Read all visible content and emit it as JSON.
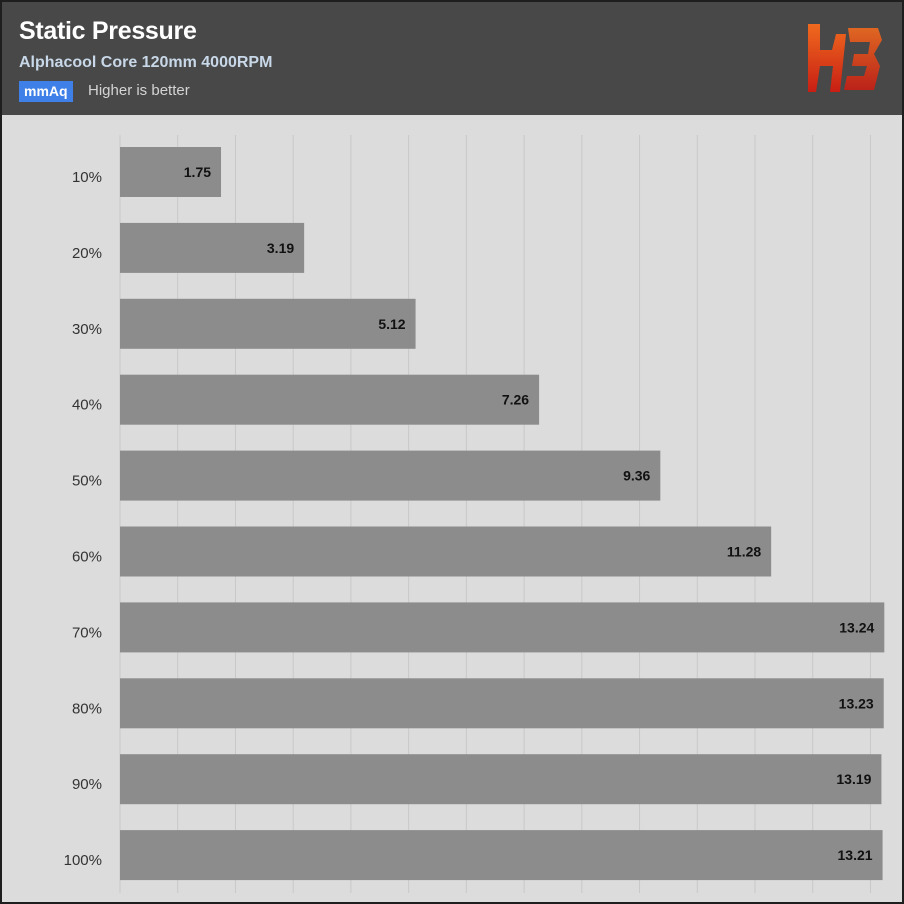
{
  "header": {
    "title": "Static Pressure",
    "subtitle": "Alphacool Core 120mm 4000RPM",
    "unit": "mmAq",
    "note": "Higher is better"
  },
  "logo": {
    "icon": "hb-logo-icon",
    "colors": [
      "#f06a1e",
      "#c81e14"
    ]
  },
  "chart_data": {
    "type": "bar",
    "orientation": "horizontal",
    "title": "Static Pressure",
    "subtitle": "Alphacool Core 120mm 4000RPM",
    "unit": "mmAq",
    "categories": [
      "10%",
      "20%",
      "30%",
      "40%",
      "50%",
      "60%",
      "70%",
      "80%",
      "90%",
      "100%"
    ],
    "values": [
      1.75,
      3.19,
      5.12,
      7.26,
      9.36,
      11.28,
      13.24,
      13.23,
      13.19,
      13.21
    ],
    "xlim": [
      0,
      13.2
    ],
    "grid": true,
    "legend": "none",
    "colors": {
      "bar": "#8c8c8c",
      "background": "#dcdcdc",
      "grid": "#c8c8c8",
      "header": "#484848",
      "badge": "#3f80e8"
    }
  }
}
